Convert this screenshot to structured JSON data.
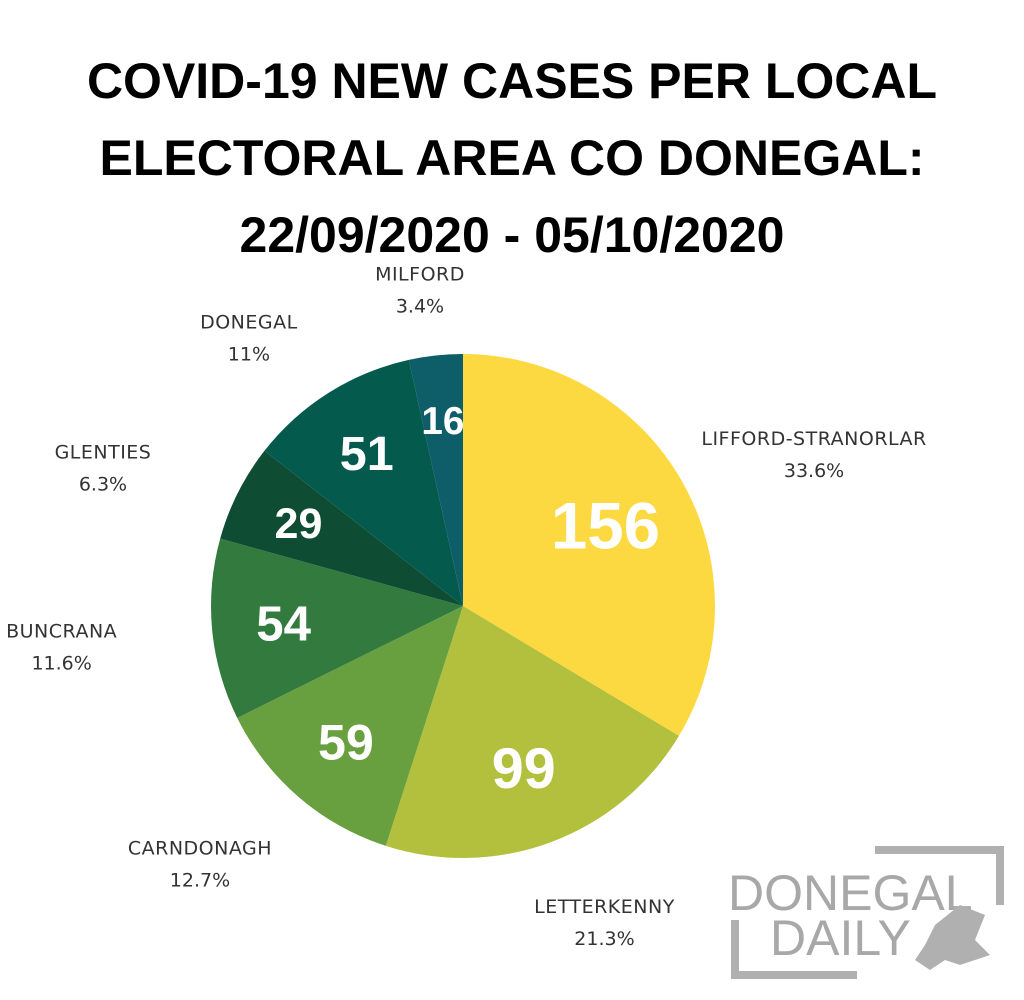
{
  "chart_data": {
    "type": "pie",
    "title": [
      "COVID-19 NEW CASES PER LOCAL",
      "ELECTORAL AREA CO DONEGAL:",
      "22/09/2020 - 05/10/2020"
    ],
    "categories": [
      "LIFFORD-STRANORLAR",
      "LETTERKENNY",
      "CARNDONAGH",
      "BUNCRANA",
      "GLENTIES",
      "DONEGAL",
      "MILFORD"
    ],
    "values": [
      156,
      99,
      59,
      54,
      29,
      51,
      16
    ],
    "colors": [
      "#fcd940",
      "#b3c03d",
      "#68a040",
      "#337a3f",
      "#0e4c34",
      "#045a4d",
      "#0d5e68"
    ],
    "shares": [
      {
        "value": 33.6,
        "label": "33.6%"
      },
      {
        "value": 21.3,
        "label": "21.3%"
      },
      {
        "value": 12.7,
        "label": "12.7%"
      },
      {
        "value": 11.6,
        "label": "11.6%"
      },
      {
        "value": 6.3,
        "label": "6.3%"
      },
      {
        "value": 11,
        "label": "11%"
      },
      {
        "value": 3.4,
        "label": "3.4%"
      }
    ]
  },
  "logo": {
    "line1": "DONEGAL",
    "line2": "DAILY"
  }
}
